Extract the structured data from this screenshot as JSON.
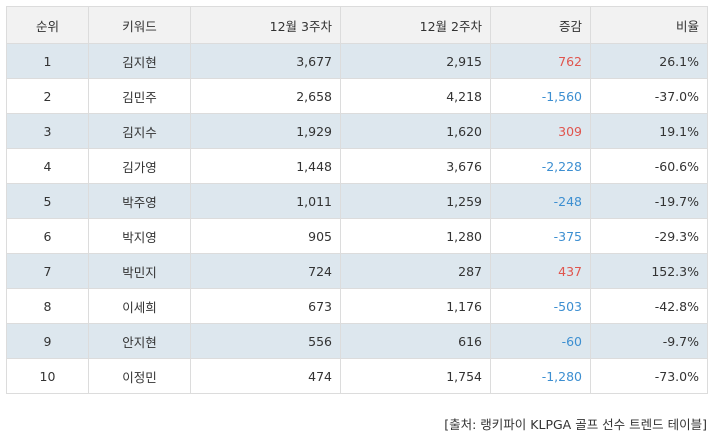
{
  "table": {
    "headers": {
      "rank": "순위",
      "keyword": "키워드",
      "week3": "12월 3주차",
      "week2": "12월 2주차",
      "change": "증감",
      "ratio": "비율"
    },
    "rows": [
      {
        "rank": "1",
        "keyword": "김지현",
        "week3": "3,677",
        "week2": "2,915",
        "change": "762",
        "ratio": "26.1%"
      },
      {
        "rank": "2",
        "keyword": "김민주",
        "week3": "2,658",
        "week2": "4,218",
        "change": "-1,560",
        "ratio": "-37.0%"
      },
      {
        "rank": "3",
        "keyword": "김지수",
        "week3": "1,929",
        "week2": "1,620",
        "change": "309",
        "ratio": "19.1%"
      },
      {
        "rank": "4",
        "keyword": "김가영",
        "week3": "1,448",
        "week2": "3,676",
        "change": "-2,228",
        "ratio": "-60.6%"
      },
      {
        "rank": "5",
        "keyword": "박주영",
        "week3": "1,011",
        "week2": "1,259",
        "change": "-248",
        "ratio": "-19.7%"
      },
      {
        "rank": "6",
        "keyword": "박지영",
        "week3": "905",
        "week2": "1,280",
        "change": "-375",
        "ratio": "-29.3%"
      },
      {
        "rank": "7",
        "keyword": "박민지",
        "week3": "724",
        "week2": "287",
        "change": "437",
        "ratio": "152.3%"
      },
      {
        "rank": "8",
        "keyword": "이세희",
        "week3": "673",
        "week2": "1,176",
        "change": "-503",
        "ratio": "-42.8%"
      },
      {
        "rank": "9",
        "keyword": "안지현",
        "week3": "556",
        "week2": "616",
        "change": "-60",
        "ratio": "-9.7%"
      },
      {
        "rank": "10",
        "keyword": "이정민",
        "week3": "474",
        "week2": "1,754",
        "change": "-1,280",
        "ratio": "-73.0%"
      }
    ]
  },
  "colors": {
    "positive": "#e0554e",
    "negative": "#3d8fd1",
    "row_shade": "#dde7ee",
    "header_bg": "#f2f2f2"
  },
  "source": "[출처: 랭키파이 KLPGA 골프 선수 트렌드 테이블]"
}
